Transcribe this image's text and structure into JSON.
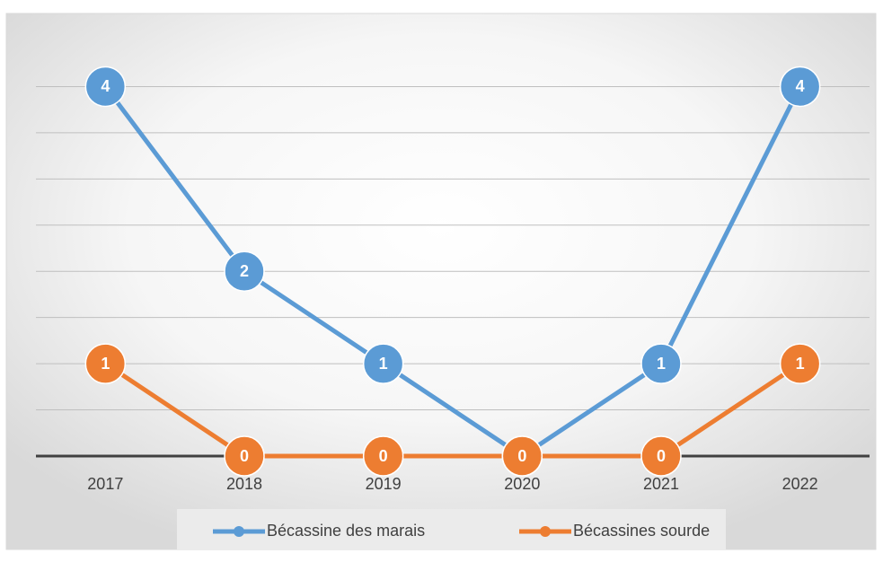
{
  "chart_data": {
    "type": "line",
    "categories": [
      "2017",
      "2018",
      "2019",
      "2020",
      "2021",
      "2022"
    ],
    "series": [
      {
        "name": "Bécassine des marais",
        "color": "#5b9bd5",
        "values": [
          4,
          2,
          1,
          0,
          1,
          4
        ]
      },
      {
        "name": "Bécassines sourde",
        "color": "#ed7d31",
        "values": [
          1,
          0,
          0,
          0,
          0,
          1
        ]
      }
    ],
    "ylim": [
      0,
      4.5
    ],
    "yticks": [
      0,
      0.5,
      1,
      1.5,
      2,
      2.5,
      3,
      3.5,
      4
    ],
    "grid": true,
    "legend": "bottom"
  }
}
